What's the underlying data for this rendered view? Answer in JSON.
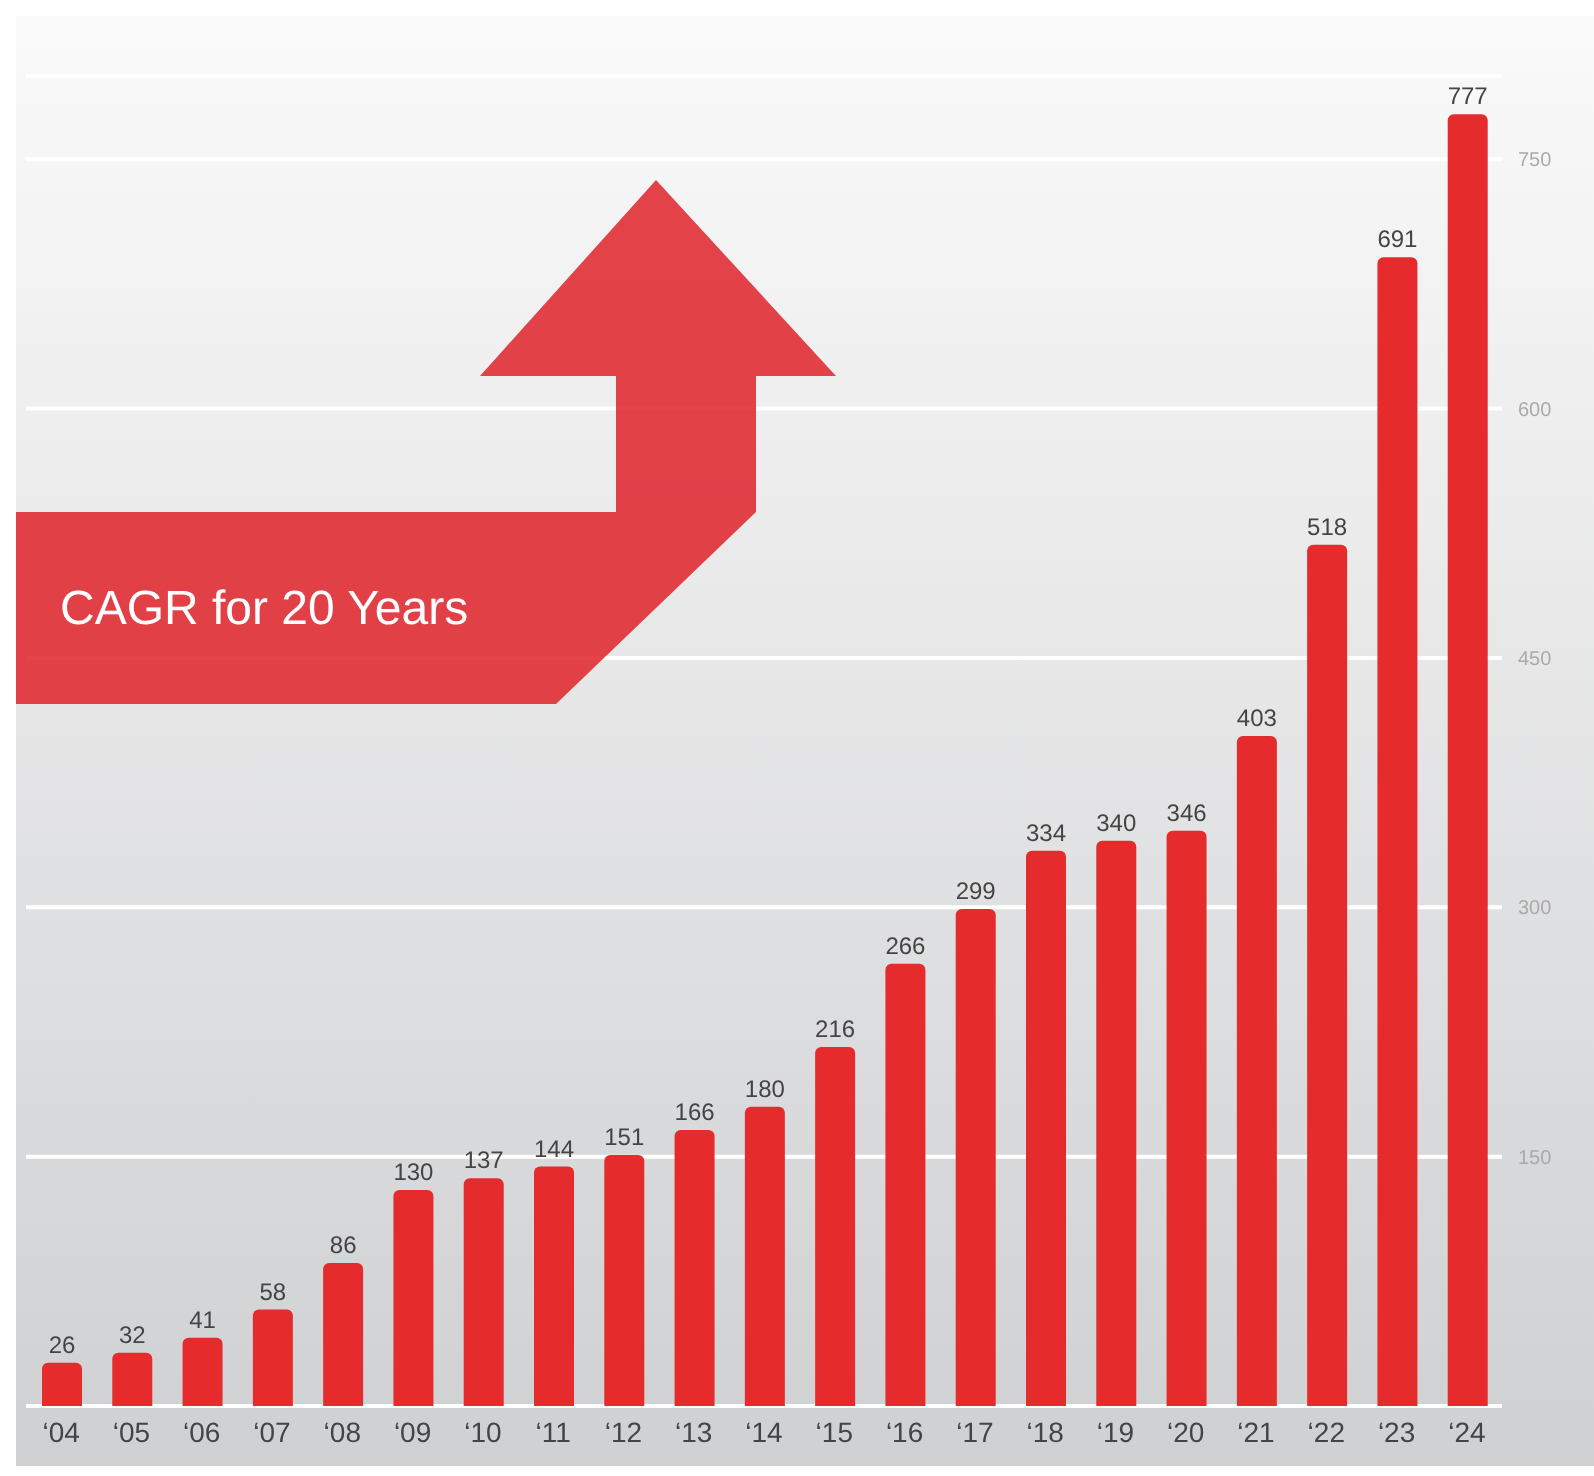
{
  "chart_data": {
    "type": "bar",
    "categories": [
      "‘04",
      "‘05",
      "‘06",
      "‘07",
      "‘08",
      "‘09",
      "‘10",
      "‘11",
      "‘12",
      "‘13",
      "‘14",
      "‘15",
      "‘16",
      "‘17",
      "‘18",
      "‘19",
      "‘20",
      "‘21",
      "‘22",
      "‘23",
      "‘24"
    ],
    "values": [
      26,
      32,
      41,
      58,
      86,
      130,
      137,
      144,
      151,
      166,
      180,
      216,
      266,
      299,
      334,
      340,
      346,
      403,
      518,
      691,
      777
    ],
    "color": "#e52b2b",
    "ylim": [
      0,
      800
    ],
    "yticks": [
      150,
      300,
      450,
      600,
      750
    ],
    "grid": "y",
    "data_labels": true,
    "annotations": [
      "CAGR for 20 Years"
    ]
  }
}
